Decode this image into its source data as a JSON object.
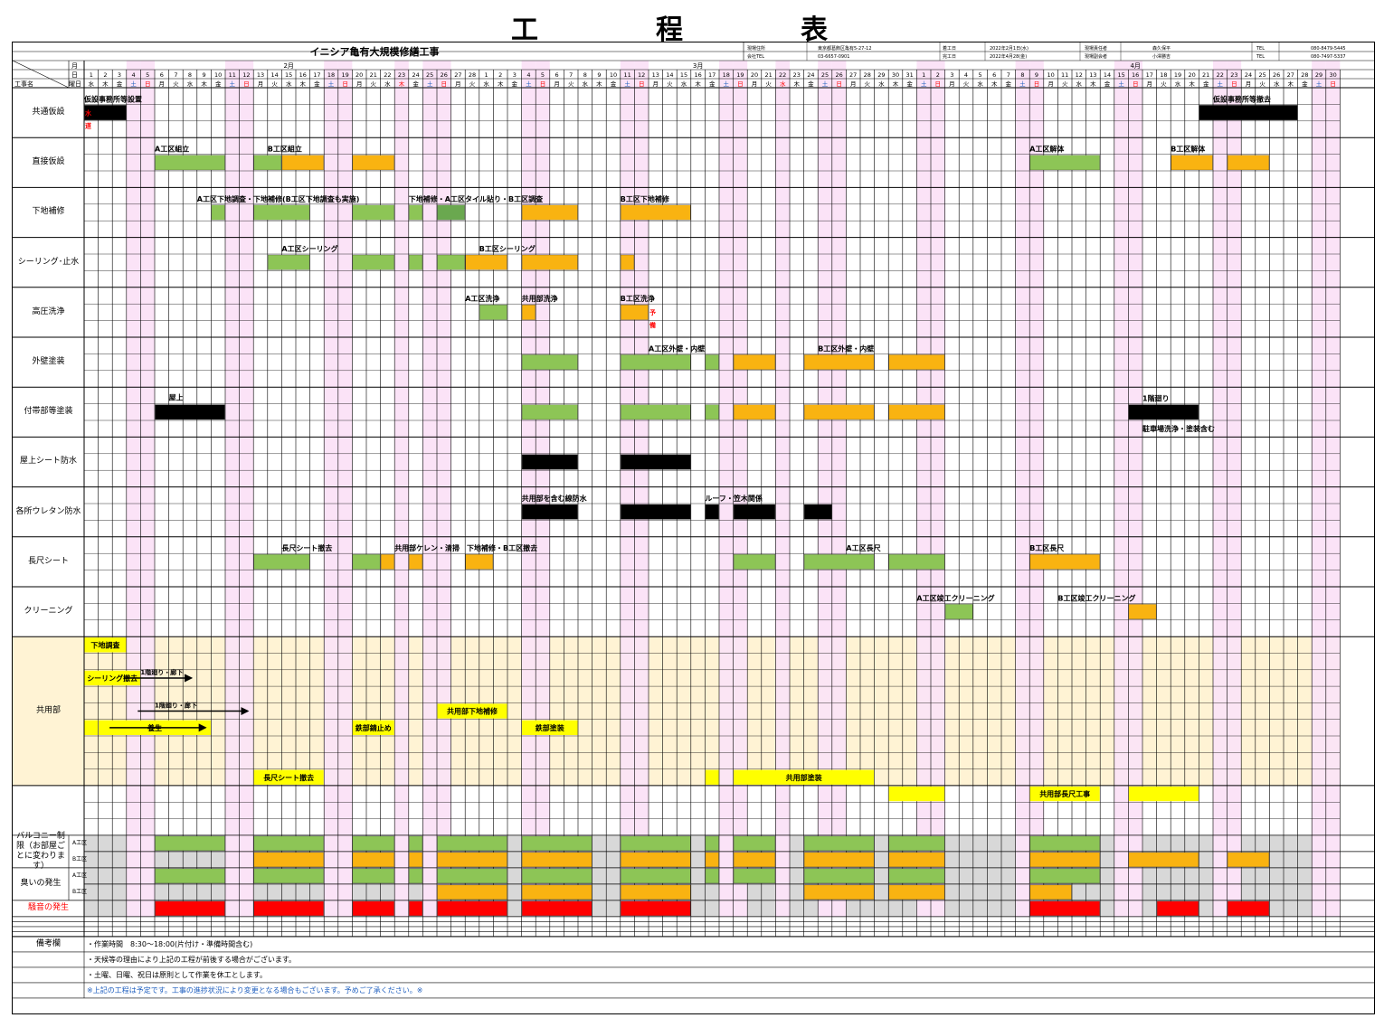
{
  "title": "工　程　表",
  "project": {
    "name": "イニシア亀有大規模修繕工事",
    "info_rows": [
      [
        "現場住所",
        "東京都葛飾区亀有5-27-12",
        "着工日",
        "2022年2月1日(水)",
        "現場責任者",
        "森久保平",
        "TEL",
        "080-8479-5445"
      ],
      [
        "会社TEL",
        "03-6657-0901",
        "完工日",
        "2022年4月28(金)",
        "現場副会者",
        "小澤勝吉",
        "TEL",
        "080-7497-5337"
      ]
    ]
  },
  "header_labels": {
    "month": "月",
    "day": "日",
    "weekday": "曜日",
    "work_name": "工事名",
    "months": [
      {
        "label": "2月",
        "at_day": 15
      },
      {
        "label": "3月",
        "at_day": 44
      },
      {
        "label": "4月",
        "at_day": 75
      }
    ]
  },
  "days": [
    "1",
    "2",
    "3",
    "4",
    "5",
    "6",
    "7",
    "8",
    "9",
    "10",
    "11",
    "12",
    "13",
    "14",
    "15",
    "16",
    "17",
    "18",
    "19",
    "20",
    "21",
    "22",
    "23",
    "24",
    "25",
    "26",
    "27",
    "28",
    "1",
    "2",
    "3",
    "4",
    "5",
    "6",
    "7",
    "8",
    "9",
    "10",
    "11",
    "12",
    "13",
    "14",
    "15",
    "16",
    "17",
    "18",
    "19",
    "20",
    "21",
    "22",
    "23",
    "24",
    "25",
    "26",
    "27",
    "28",
    "29",
    "30",
    "31",
    "1",
    "2",
    "3",
    "4",
    "5",
    "6",
    "7",
    "8",
    "9",
    "10",
    "11",
    "12",
    "13",
    "14",
    "15",
    "16",
    "17",
    "18",
    "19",
    "20",
    "21",
    "22",
    "23",
    "24",
    "25",
    "26",
    "27",
    "28",
    "29",
    "30"
  ],
  "weekdays": [
    "水",
    "木",
    "金",
    "土",
    "日",
    "月",
    "火",
    "水",
    "木",
    "金",
    "土",
    "日",
    "月",
    "火",
    "水",
    "木",
    "金",
    "土",
    "日",
    "月",
    "火",
    "水",
    "木",
    "金",
    "土",
    "日",
    "月",
    "火",
    "水",
    "木",
    "金",
    "土",
    "日",
    "月",
    "火",
    "水",
    "木",
    "金",
    "土",
    "日",
    "月",
    "火",
    "水",
    "木",
    "金",
    "土",
    "日",
    "月",
    "火",
    "水",
    "木",
    "金",
    "土",
    "日",
    "月",
    "火",
    "水",
    "木",
    "金",
    "土",
    "日",
    "月",
    "火",
    "水",
    "木",
    "金",
    "土",
    "日",
    "月",
    "火",
    "水",
    "木",
    "金",
    "土",
    "日",
    "月",
    "火",
    "水",
    "木",
    "金",
    "土",
    "日",
    "月",
    "火",
    "水",
    "木",
    "金",
    "土",
    "日"
  ],
  "holiday_days": [
    4,
    5,
    11,
    12,
    18,
    19,
    23,
    25,
    26,
    32,
    33,
    39,
    40,
    46,
    47,
    50,
    53,
    54,
    60,
    61,
    67,
    68,
    74,
    75,
    81,
    82,
    88,
    89
  ],
  "categories": [
    {
      "label": "共通仮設"
    },
    {
      "label": "直接仮設"
    },
    {
      "label": "下地補修"
    },
    {
      "label": "シーリング･止水"
    },
    {
      "label": "高圧洗浄"
    },
    {
      "label": "外壁塗装"
    },
    {
      "label": "付帯部等塗装"
    },
    {
      "label": "屋上シート防水"
    },
    {
      "label": "各所ウレタン防水"
    },
    {
      "label": "長尺シート"
    },
    {
      "label": "クリーニング"
    },
    {
      "label": "共用部"
    },
    {
      "label": ""
    },
    {
      "label": "バルコニー制限（お部屋ごとに変わります）"
    },
    {
      "label": "臭いの発生"
    },
    {
      "label": "騒音の発生"
    }
  ],
  "sub_labels": [
    "A工区",
    "B工区",
    "A工区",
    "B工区"
  ],
  "colors": {
    "green": "#8dc556",
    "orange": "#f9b311",
    "black": "#000000",
    "gray": "#d8d8d8",
    "red": "#ff0000",
    "yellow": "#ffff00",
    "pink": "#fbe3f7",
    "cream": "#fff3d4",
    "dark_green": "#6aa84f"
  },
  "bars": [
    {
      "row": 0,
      "from": 1,
      "to": 3,
      "color": "black"
    },
    {
      "row": 0,
      "from": 80,
      "to": 86,
      "color": "black"
    },
    {
      "row": 1,
      "from": 6,
      "to": 10,
      "color": "green"
    },
    {
      "row": 1,
      "from": 13,
      "to": 14,
      "color": "green"
    },
    {
      "row": 1,
      "from": 15,
      "to": 17,
      "color": "orange"
    },
    {
      "row": 1,
      "from": 20,
      "to": 22,
      "color": "orange"
    },
    {
      "row": 1,
      "from": 68,
      "to": 72,
      "color": "green"
    },
    {
      "row": 1,
      "from": 78,
      "to": 80,
      "color": "orange"
    },
    {
      "row": 1,
      "from": 82,
      "to": 84,
      "color": "orange"
    },
    {
      "row": 2,
      "from": 10,
      "to": 10,
      "color": "green"
    },
    {
      "row": 2,
      "from": 13,
      "to": 16,
      "color": "green"
    },
    {
      "row": 2,
      "from": 20,
      "to": 22,
      "color": "green"
    },
    {
      "row": 2,
      "from": 24,
      "to": 24,
      "color": "green"
    },
    {
      "row": 2,
      "from": 26,
      "to": 27,
      "color": "dark_green"
    },
    {
      "row": 2,
      "from": 32,
      "to": 35,
      "color": "orange"
    },
    {
      "row": 2,
      "from": 39,
      "to": 43,
      "color": "orange"
    },
    {
      "row": 3,
      "from": 14,
      "to": 16,
      "color": "green"
    },
    {
      "row": 3,
      "from": 20,
      "to": 22,
      "color": "green"
    },
    {
      "row": 3,
      "from": 24,
      "to": 24,
      "color": "green"
    },
    {
      "row": 3,
      "from": 26,
      "to": 27,
      "color": "green"
    },
    {
      "row": 3,
      "from": 28,
      "to": 30,
      "color": "orange"
    },
    {
      "row": 3,
      "from": 32,
      "to": 35,
      "color": "orange"
    },
    {
      "row": 3,
      "from": 39,
      "to": 39,
      "color": "orange"
    },
    {
      "row": 4,
      "from": 29,
      "to": 30,
      "color": "green"
    },
    {
      "row": 4,
      "from": 32,
      "to": 32,
      "color": "orange"
    },
    {
      "row": 4,
      "from": 39,
      "to": 40,
      "color": "orange"
    },
    {
      "row": 5,
      "from": 32,
      "to": 35,
      "color": "green"
    },
    {
      "row": 5,
      "from": 39,
      "to": 43,
      "color": "green"
    },
    {
      "row": 5,
      "from": 45,
      "to": 45,
      "color": "green"
    },
    {
      "row": 5,
      "from": 47,
      "to": 49,
      "color": "orange"
    },
    {
      "row": 5,
      "from": 52,
      "to": 56,
      "color": "orange"
    },
    {
      "row": 5,
      "from": 58,
      "to": 61,
      "color": "orange"
    },
    {
      "row": 6,
      "from": 6,
      "to": 10,
      "color": "black"
    },
    {
      "row": 6,
      "from": 32,
      "to": 35,
      "color": "green"
    },
    {
      "row": 6,
      "from": 39,
      "to": 43,
      "color": "green"
    },
    {
      "row": 6,
      "from": 45,
      "to": 45,
      "color": "green"
    },
    {
      "row": 6,
      "from": 47,
      "to": 49,
      "color": "orange"
    },
    {
      "row": 6,
      "from": 52,
      "to": 56,
      "color": "orange"
    },
    {
      "row": 6,
      "from": 58,
      "to": 61,
      "color": "orange"
    },
    {
      "row": 6,
      "from": 75,
      "to": 79,
      "color": "black"
    },
    {
      "row": 7,
      "from": 32,
      "to": 35,
      "color": "black"
    },
    {
      "row": 7,
      "from": 39,
      "to": 43,
      "color": "black"
    },
    {
      "row": 8,
      "from": 32,
      "to": 35,
      "color": "black"
    },
    {
      "row": 8,
      "from": 39,
      "to": 43,
      "color": "black"
    },
    {
      "row": 8,
      "from": 45,
      "to": 45,
      "color": "black"
    },
    {
      "row": 8,
      "from": 47,
      "to": 49,
      "color": "black"
    },
    {
      "row": 8,
      "from": 52,
      "to": 53,
      "color": "black"
    },
    {
      "row": 9,
      "from": 13,
      "to": 16,
      "color": "green"
    },
    {
      "row": 9,
      "from": 20,
      "to": 21,
      "color": "green"
    },
    {
      "row": 9,
      "from": 22,
      "to": 22,
      "color": "orange"
    },
    {
      "row": 9,
      "from": 24,
      "to": 24,
      "color": "orange"
    },
    {
      "row": 9,
      "from": 28,
      "to": 29,
      "color": "orange"
    },
    {
      "row": 9,
      "from": 47,
      "to": 49,
      "color": "green"
    },
    {
      "row": 9,
      "from": 52,
      "to": 56,
      "color": "green"
    },
    {
      "row": 9,
      "from": 58,
      "to": 61,
      "color": "green"
    },
    {
      "row": 9,
      "from": 68,
      "to": 72,
      "color": "orange"
    },
    {
      "row": 10,
      "from": 62,
      "to": 63,
      "color": "green"
    },
    {
      "row": 10,
      "from": 75,
      "to": 76,
      "color": "orange"
    }
  ],
  "task_labels": [
    {
      "row": 0,
      "day": 1,
      "text": "仮設事務所等設置"
    },
    {
      "row": 0,
      "day": 81,
      "text": "仮設事務所等撤去"
    },
    {
      "row": 1,
      "day": 6,
      "text": "A工区組立"
    },
    {
      "row": 1,
      "day": 14,
      "text": "B工区組立"
    },
    {
      "row": 1,
      "day": 68,
      "text": "A工区解体"
    },
    {
      "row": 1,
      "day": 78,
      "text": "B工区解体"
    },
    {
      "row": 2,
      "day": 9,
      "text": "A工区下地調査・下地補修(B工区下地調査も実施)"
    },
    {
      "row": 2,
      "day": 24,
      "text": "下地補修・A工区タイル貼り・B工区調査"
    },
    {
      "row": 2,
      "day": 39,
      "text": "B工区下地補修"
    },
    {
      "row": 3,
      "day": 15,
      "text": "A工区シーリング"
    },
    {
      "row": 3,
      "day": 29,
      "text": "B工区シーリング"
    },
    {
      "row": 4,
      "day": 28,
      "text": "A工区洗浄"
    },
    {
      "row": 4,
      "day": 32,
      "text": "共用部洗浄"
    },
    {
      "row": 4,
      "day": 39,
      "text": "B工区洗浄"
    },
    {
      "row": 5,
      "day": 41,
      "text": "A工区外壁・内壁"
    },
    {
      "row": 5,
      "day": 53,
      "text": "B工区外壁・内壁"
    },
    {
      "row": 6,
      "day": 7,
      "text": "屋上"
    },
    {
      "row": 6,
      "day": 76,
      "text": "1階廻り"
    },
    {
      "row": 8,
      "day": 32,
      "text": "共用部を含む線防水"
    },
    {
      "row": 8,
      "day": 45,
      "text": "ルーフ・笠木関係"
    },
    {
      "row": 9,
      "day": 15,
      "text": "長尺シート撤去"
    },
    {
      "row": 9,
      "day": 23,
      "text": "共用部ケレン・清掃　下地補修・B工区撤去"
    },
    {
      "row": 9,
      "day": 55,
      "text": "A工区長尺"
    },
    {
      "row": 9,
      "day": 68,
      "text": "B工区長尺"
    },
    {
      "row": 10,
      "day": 60,
      "text": "A工区竣工クリーニング"
    },
    {
      "row": 10,
      "day": 70,
      "text": "B工区竣工クリーニング"
    }
  ],
  "extra_labels": {
    "yobi_1": "水",
    "yobi_2": "道",
    "yobi_3": "予",
    "yobi_4": "備",
    "roof_sub": "駐車場洗浄・塗装含む"
  },
  "common_tasks": [
    {
      "sub": 0,
      "from": 1,
      "to": 3,
      "text": "下地調査"
    },
    {
      "sub": 2,
      "from": 1,
      "to": 4,
      "text": "シーリング撤去"
    },
    {
      "sub": 4,
      "from": 26,
      "to": 30,
      "text": "共用部下地補修"
    },
    {
      "sub": 5,
      "from": 1,
      "to": 1,
      "text": ""
    },
    {
      "sub": 5,
      "from": 2,
      "to": 9,
      "text": "養生"
    },
    {
      "sub": 5,
      "from": 20,
      "to": 22,
      "text": "鉄部錆止め"
    },
    {
      "sub": 5,
      "from": 32,
      "to": 35,
      "text": "鉄部塗装"
    },
    {
      "sub": 8,
      "from": 13,
      "to": 17,
      "text": "長尺シート撤去"
    },
    {
      "sub": 8,
      "from": 45,
      "to": 45,
      "text": ""
    },
    {
      "sub": 8,
      "from": 47,
      "to": 56,
      "text": "共用部塗装"
    },
    {
      "sub": 9,
      "from": 58,
      "to": 61,
      "text": ""
    },
    {
      "sub": 9,
      "from": 68,
      "to": 72,
      "text": "共用部長尺工事"
    },
    {
      "sub": 9,
      "from": 75,
      "to": 79,
      "text": ""
    }
  ],
  "common_arrows": [
    {
      "sub": 1,
      "from": 3,
      "to": 8,
      "text": "1階廻り・廊下"
    },
    {
      "sub": 3,
      "from": 4,
      "to": 12,
      "text": "1階廻り・廊下"
    },
    {
      "sub": 5,
      "from": 2,
      "to": 9,
      "text": ""
    }
  ],
  "restriction_rows": [
    {
      "sub": 0,
      "green": [
        [
          6,
          10
        ],
        [
          13,
          17
        ],
        [
          20,
          22
        ],
        [
          24,
          24
        ],
        [
          26,
          30
        ],
        [
          32,
          36
        ],
        [
          39,
          43
        ],
        [
          45,
          45
        ],
        [
          47,
          49
        ],
        [
          52,
          56
        ],
        [
          58,
          61
        ],
        [
          68,
          72
        ]
      ],
      "orange": []
    },
    {
      "sub": 1,
      "green": [],
      "orange": [
        [
          13,
          17
        ],
        [
          20,
          22
        ],
        [
          24,
          24
        ],
        [
          26,
          30
        ],
        [
          32,
          36
        ],
        [
          39,
          43
        ],
        [
          45,
          45
        ],
        [
          47,
          49
        ],
        [
          52,
          56
        ],
        [
          58,
          61
        ],
        [
          68,
          72
        ],
        [
          75,
          79
        ],
        [
          82,
          84
        ]
      ]
    },
    {
      "sub": 2,
      "green": [
        [
          6,
          10
        ],
        [
          13,
          17
        ],
        [
          20,
          22
        ],
        [
          24,
          24
        ],
        [
          26,
          30
        ],
        [
          32,
          36
        ],
        [
          39,
          43
        ],
        [
          45,
          45
        ],
        [
          47,
          49
        ],
        [
          52,
          56
        ],
        [
          58,
          61
        ],
        [
          68,
          72
        ]
      ],
      "orange": []
    },
    {
      "sub": 3,
      "green": [],
      "orange": [
        [
          26,
          30
        ],
        [
          32,
          36
        ],
        [
          39,
          43
        ],
        [
          52,
          56
        ],
        [
          58,
          61
        ],
        [
          68,
          70
        ]
      ]
    },
    {
      "sub": 4,
      "red": [
        [
          6,
          10
        ],
        [
          13,
          17
        ],
        [
          20,
          22
        ],
        [
          24,
          24
        ],
        [
          26,
          30
        ],
        [
          32,
          36
        ],
        [
          39,
          43
        ],
        [
          68,
          72
        ],
        [
          77,
          79
        ],
        [
          82,
          84
        ]
      ]
    }
  ],
  "notes": {
    "label": "備考欄",
    "lines": [
      "・作業時間　8:30～18:00(片付け・準備時間含む)",
      "・天候等の理由により上記の工程が前後する場合がございます。",
      "・土曜、日曜、祝日は原則として作業を休工とします。",
      "※上記の工程は予定です。工事の進捗状況により変更となる場合もございます。予めご了承ください。※"
    ]
  }
}
